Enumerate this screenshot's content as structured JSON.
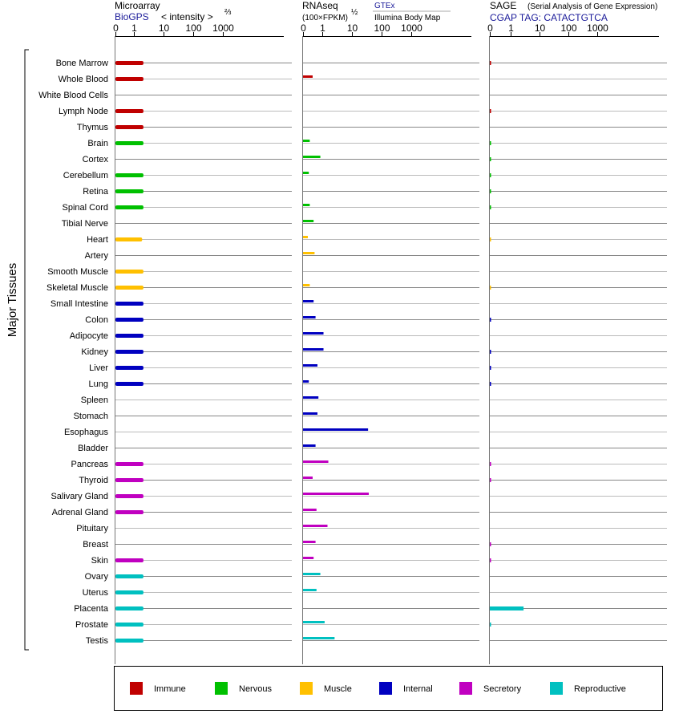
{
  "y_axis_title": "Major Tissues",
  "panels": {
    "microarray": {
      "title": "Microarray",
      "source": "BioGPS",
      "subtitle": "< intensity >",
      "exponent": "⅔"
    },
    "rnaseq": {
      "title": "RNAseq",
      "unit": "(100×FPKM)",
      "exponent": "½",
      "source1": "GTEx",
      "source2": "Illumina Body Map"
    },
    "sage": {
      "title": "SAGE",
      "subtitle": "(Serial Analysis of Gene Expression)",
      "tag": "CGAP TAG: CATACTGTCA"
    }
  },
  "axis_ticks": [
    "0",
    "1",
    "10",
    "100",
    "1000"
  ],
  "legend": [
    {
      "label": "Immune",
      "color": "#c00000"
    },
    {
      "label": "Nervous",
      "color": "#00c000"
    },
    {
      "label": "Muscle",
      "color": "#ffc000"
    },
    {
      "label": "Internal",
      "color": "#0000c0"
    },
    {
      "label": "Secretory",
      "color": "#c000c0"
    },
    {
      "label": "Reproductive",
      "color": "#00c0c0"
    }
  ],
  "chart_data": {
    "type": "bar",
    "orientation": "horizontal",
    "ylabel": "Major Tissues",
    "x_scale": "log-like (0, 1, 10, 100, 1000)",
    "xlim": [
      0,
      1000
    ],
    "categories": [
      "Bone Marrow",
      "Whole Blood",
      "White Blood Cells",
      "Lymph Node",
      "Thymus",
      "Brain",
      "Cortex",
      "Cerebellum",
      "Retina",
      "Spinal Cord",
      "Tibial Nerve",
      "Heart",
      "Artery",
      "Smooth Muscle",
      "Skeletal Muscle",
      "Small Intestine",
      "Colon",
      "Adipocyte",
      "Kidney",
      "Liver",
      "Lung",
      "Spleen",
      "Stomach",
      "Esophagus",
      "Bladder",
      "Pancreas",
      "Thyroid",
      "Salivary Gland",
      "Adrenal Gland",
      "Pituitary",
      "Breast",
      "Skin",
      "Ovary",
      "Uterus",
      "Placenta",
      "Prostate",
      "Testis"
    ],
    "groups": [
      "Immune",
      "Immune",
      "Immune",
      "Immune",
      "Immune",
      "Nervous",
      "Nervous",
      "Nervous",
      "Nervous",
      "Nervous",
      "Nervous",
      "Muscle",
      "Muscle",
      "Muscle",
      "Muscle",
      "Internal",
      "Internal",
      "Internal",
      "Internal",
      "Internal",
      "Internal",
      "Internal",
      "Internal",
      "Internal",
      "Internal",
      "Secretory",
      "Secretory",
      "Secretory",
      "Secretory",
      "Secretory",
      "Secretory",
      "Secretory",
      "Reproductive",
      "Reproductive",
      "Reproductive",
      "Reproductive",
      "Reproductive"
    ],
    "series": [
      {
        "name": "Microarray",
        "values": [
          2.1,
          2.1,
          null,
          2.1,
          2.1,
          2.1,
          null,
          2.1,
          2.1,
          2.1,
          null,
          1.9,
          null,
          2.1,
          2.1,
          2.1,
          2.1,
          2.1,
          2.1,
          2.1,
          2.1,
          null,
          null,
          null,
          null,
          2.1,
          2.1,
          2.1,
          2.1,
          null,
          null,
          2.1,
          2.1,
          2.1,
          2.1,
          2.1,
          2.1
        ]
      },
      {
        "name": "RNAseq",
        "values": [
          null,
          0.5,
          null,
          null,
          null,
          0.35,
          0.9,
          0.3,
          null,
          0.35,
          0.55,
          0.25,
          0.6,
          null,
          0.35,
          0.55,
          0.65,
          1.1,
          1.1,
          0.75,
          0.3,
          0.8,
          0.75,
          35,
          0.65,
          1.6,
          0.5,
          37,
          0.7,
          1.5,
          0.65,
          0.55,
          0.9,
          0.7,
          null,
          1.2,
          2.6
        ]
      },
      {
        "name": "SAGE",
        "values": [
          0.02,
          null,
          null,
          0.02,
          null,
          0.02,
          0.02,
          0.02,
          0.02,
          0.02,
          null,
          0.01,
          null,
          null,
          0.01,
          null,
          0.02,
          null,
          0.02,
          0.02,
          0.02,
          null,
          null,
          null,
          null,
          0.02,
          0.02,
          null,
          null,
          null,
          0.02,
          0.02,
          null,
          null,
          2.8,
          0.02,
          null
        ]
      }
    ]
  }
}
